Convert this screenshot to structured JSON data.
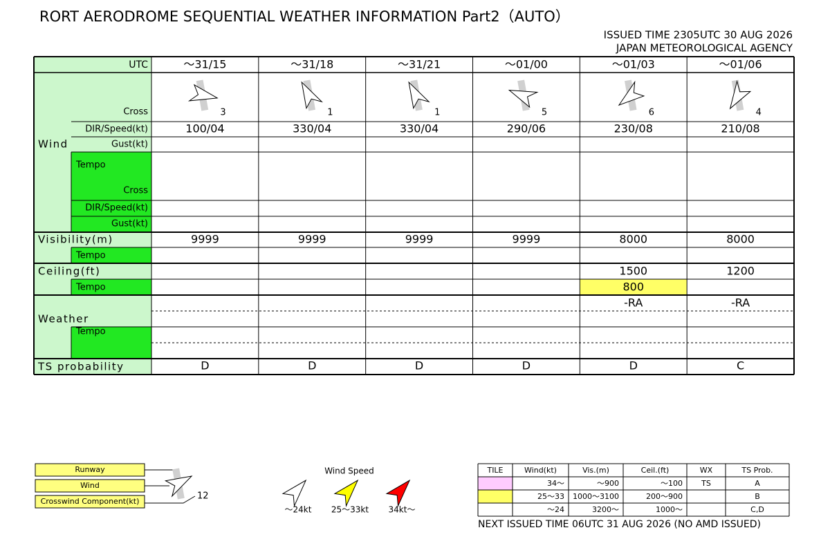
{
  "header": {
    "title": "RORT AERODROME SEQUENTIAL WEATHER INFORMATION Part2（AUTO）",
    "issued": "ISSUED TIME 2305UTC 30 AUG 2026",
    "agency": "JAPAN METEOROLOGICAL AGENCY"
  },
  "table": {
    "utc_label": "UTC",
    "times": [
      "～31/15",
      "～31/18",
      "～31/21",
      "～01/00",
      "～01/03",
      "～01/06"
    ],
    "labels": {
      "wind": "Wind",
      "cross": "Cross",
      "dir_speed": "DIR/Speed(kt)",
      "gust": "Gust(kt)",
      "tempo": "Tempo",
      "visibility": "Visibility(m)",
      "ceiling": "Ceiling(ft)",
      "weather": "Weather",
      "ts": "TS probability"
    },
    "cross": [
      3,
      1,
      1,
      5,
      6,
      4
    ],
    "wind": [
      "100/04",
      "330/04",
      "330/04",
      "290/06",
      "230/08",
      "210/08"
    ],
    "visibility": [
      9999,
      9999,
      9999,
      9999,
      8000,
      8000
    ],
    "ceiling": [
      null,
      null,
      null,
      null,
      1500,
      1200
    ],
    "ceiling_tempo": [
      null,
      null,
      null,
      null,
      800,
      null
    ],
    "ceiling_tempo_colors": [
      null,
      null,
      null,
      null,
      "#ffff66",
      null
    ],
    "weather": [
      null,
      null,
      null,
      null,
      "-RA",
      "-RA"
    ],
    "ts": [
      "D",
      "D",
      "D",
      "D",
      "D",
      "C"
    ]
  },
  "legend": {
    "runway": "Runway",
    "wind": "Wind",
    "crosswind": "Crosswind Component(kt)",
    "sample_cross": 12,
    "wind_speed_title": "Wind Speed",
    "speeds": [
      {
        "label": "～24kt",
        "color": "#ffffff"
      },
      {
        "label": "25～33kt",
        "color": "#ffff00"
      },
      {
        "label": "34kt～",
        "color": "#ff0000"
      }
    ]
  },
  "tile_table": {
    "header": [
      "TILE",
      "Wind(kt)",
      "Vis.(m)",
      "Ceil.(ft)",
      "WX",
      "TS Prob."
    ],
    "rows": [
      [
        null,
        "34～",
        "～900",
        "～100",
        "TS",
        "A"
      ],
      [
        null,
        "25～33",
        "1000～3100",
        "200～900",
        null,
        "B"
      ],
      [
        null,
        "～24",
        "3200～",
        "1000～",
        null,
        "C,D"
      ]
    ],
    "colors": [
      "#ffccff",
      "#ffff66",
      null
    ]
  },
  "footer": "NEXT ISSUED TIME 06UTC 31 AUG 2026 (NO AMD ISSUED)"
}
